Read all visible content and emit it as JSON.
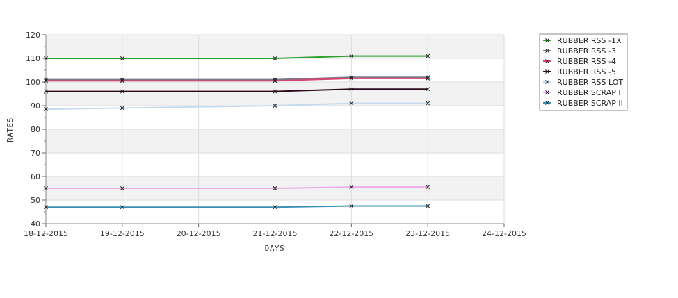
{
  "chart_data": {
    "type": "line",
    "xlabel": "DAYS",
    "ylabel": "RATES",
    "ylim": [
      40,
      120
    ],
    "yticks": [
      "40",
      "50",
      "60",
      "70",
      "80",
      "90",
      "100",
      "110",
      "120"
    ],
    "x_ticks": [
      "18-12-2015",
      "19-12-2015",
      "20-12-2015",
      "21-12-2015",
      "22-12-2015",
      "23-12-2015",
      "24-12-2015"
    ],
    "x": [
      "18-12-2015",
      "19-12-2015",
      "21-12-2015",
      "22-12-2015",
      "23-12-2015"
    ],
    "grid": true,
    "legend_position": "top-right",
    "series": [
      {
        "name": "RUBBER RSS -1X",
        "color": "#2ca02c",
        "values": [
          110,
          110,
          110,
          111,
          111
        ]
      },
      {
        "name": "RUBBER RSS -3",
        "color": "#7a7a8c",
        "values": [
          101,
          101,
          101,
          102,
          102
        ]
      },
      {
        "name": "RUBBER RSS -4",
        "color": "#d6456b",
        "values": [
          100.5,
          100.5,
          100.5,
          101.5,
          101.5
        ]
      },
      {
        "name": "RUBBER RSS -5",
        "color": "#2a0a1c",
        "values": [
          96,
          96,
          96,
          97,
          97
        ]
      },
      {
        "name": "RUBBER RSS LOT",
        "color": "#c5d9ef",
        "values": [
          88.5,
          89,
          90,
          91,
          91
        ]
      },
      {
        "name": "RUBBER SCRAP I",
        "color": "#f0a6e8",
        "values": [
          55,
          55,
          55,
          55.5,
          55.5
        ]
      },
      {
        "name": "RUBBER SCRAP II",
        "color": "#3a8fb5",
        "values": [
          47,
          47,
          47,
          47.5,
          47.5
        ]
      }
    ]
  }
}
